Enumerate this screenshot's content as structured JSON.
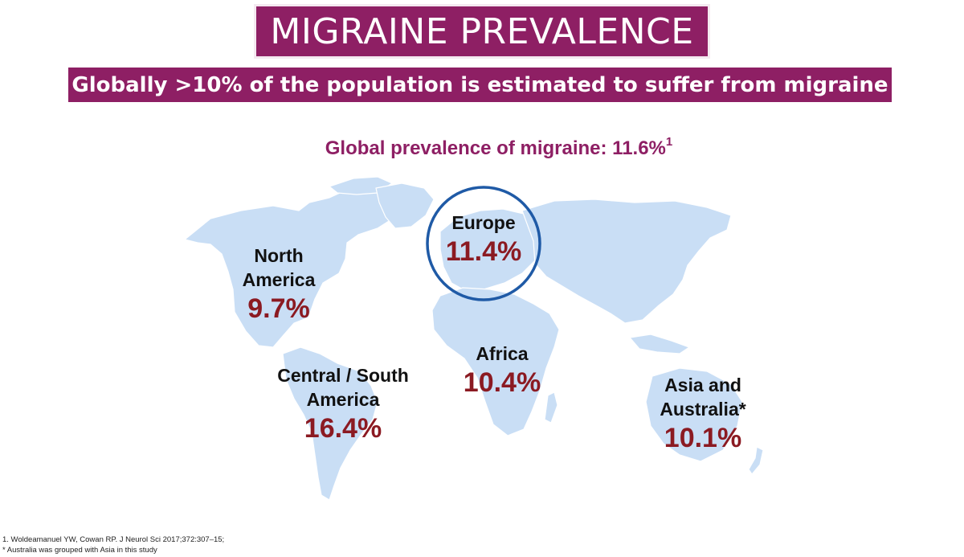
{
  "title": "MIGRAINE PREVALENCE",
  "subtitle": "Globally >10% of the population is estimated to suffer from migraine",
  "global": {
    "label": "Global prevalence of migraine: 11.6%",
    "ref": "1"
  },
  "colors": {
    "brand": "#8e1f64",
    "value": "#8b1a22",
    "land": "#c9def5",
    "highlight_ring": "#1f5aa6"
  },
  "regions": {
    "europe": {
      "name": "Europe",
      "value": "11.4%"
    },
    "north_america": {
      "name_line1": "North",
      "name_line2": "America",
      "value": "9.7%"
    },
    "south_america": {
      "name_line1": "Central / South",
      "name_line2": "America",
      "value": "16.4%"
    },
    "africa": {
      "name": "Africa",
      "value": "10.4%"
    },
    "asia_australia": {
      "name_line1": "Asia and",
      "name_line2": "Australia*",
      "value": "10.1%"
    }
  },
  "footnotes": {
    "ref1": "1. Woldeamanuel YW, Cowan RP. J Neurol Sci 2017;372:307–15;",
    "note": "* Australia was grouped with Asia in this study"
  }
}
